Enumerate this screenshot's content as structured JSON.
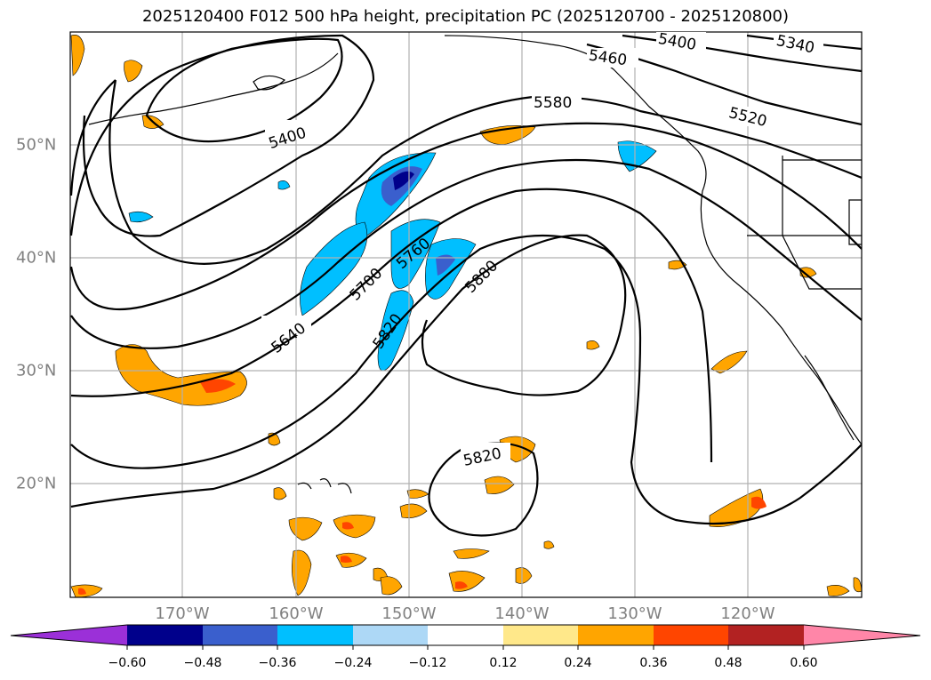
{
  "title": "2025120400 F012 500 hPa height, precipitation PC (2025120700 - 2025120800)",
  "lon_labels": [
    "170°W",
    "160°W",
    "150°W",
    "140°W",
    "130°W",
    "120°W"
  ],
  "lat_labels": [
    "50°N",
    "40°N",
    "30°N",
    "20°N"
  ],
  "contour_labels": [
    "5340",
    "5400",
    "5460",
    "5520",
    "5580",
    "5400",
    "5640",
    "5700",
    "5760",
    "5820",
    "5880",
    "5820"
  ],
  "colorbar": {
    "ticks": [
      "−0.60",
      "−0.48",
      "−0.36",
      "−0.24",
      "−0.12",
      "0.12",
      "0.24",
      "0.36",
      "0.48",
      "0.60"
    ],
    "colors": [
      "#9b30d8",
      "#00008b",
      "#3a5fcd",
      "#00bfff",
      "#add8f6",
      "#ffffff",
      "#ffe88a",
      "#ffa500",
      "#ff4500",
      "#b22222",
      "#ff86a8"
    ]
  }
}
